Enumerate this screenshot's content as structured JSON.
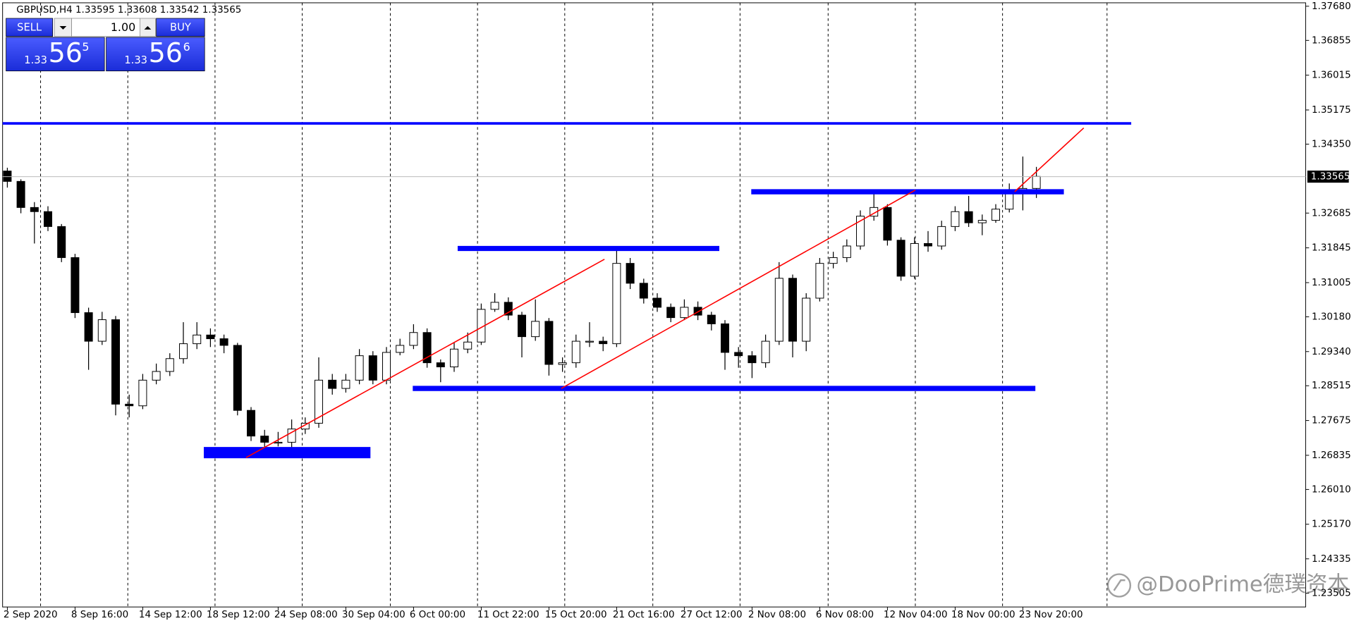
{
  "chart_data": {
    "type": "candlestick",
    "title": "GBPUSD,H4  1.33595 1.33608 1.33542 1.33565",
    "categories": [
      "2 Sep 2020",
      null,
      null,
      null,
      null,
      "8 Sep 16:00",
      null,
      null,
      null,
      null,
      "14 Sep 12:00",
      null,
      null,
      null,
      null,
      "18 Sep 12:00",
      null,
      null,
      null,
      null,
      "24 Sep 08:00",
      null,
      null,
      null,
      null,
      "30 Sep 04:00",
      null,
      null,
      null,
      null,
      "6 Oct 00:00",
      null,
      null,
      null,
      null,
      "11 Oct 22:00",
      null,
      null,
      null,
      null,
      "15 Oct 20:00",
      null,
      null,
      null,
      null,
      "21 Oct 16:00",
      null,
      null,
      null,
      null,
      "27 Oct 12:00",
      null,
      null,
      null,
      null,
      "2 Nov 08:00",
      null,
      null,
      null,
      null,
      "6 Nov 08:00",
      null,
      null,
      null,
      null,
      "12 Nov 04:00",
      null,
      null,
      null,
      null,
      "18 Nov 00:00",
      null,
      null,
      null,
      null,
      "23 Nov 20:00",
      null
    ],
    "open": [
      1.337,
      1.3345,
      1.3282,
      1.3272,
      1.3236,
      1.3161,
      1.3028,
      1.2959,
      1.3011,
      1.2807,
      1.2803,
      1.2865,
      1.2886,
      1.2917,
      1.2953,
      1.2974,
      1.2965,
      1.2949,
      1.2792,
      1.273,
      1.2715,
      1.2715,
      1.2747,
      1.2761,
      1.2865,
      1.2845,
      1.2865,
      1.2924,
      1.2865,
      1.2932,
      1.2949,
      1.298,
      1.2907,
      1.2897,
      1.294,
      1.2957,
      1.3036,
      1.3053,
      1.3022,
      1.297,
      1.3007,
      1.2903,
      1.2907,
      1.2959,
      1.2959,
      1.2953,
      1.3147,
      1.3099,
      1.3063,
      1.3041,
      1.3016,
      1.3041,
      1.3022,
      1.3001,
      1.2932,
      1.2924,
      1.2907,
      1.2959,
      1.3111,
      1.2959,
      1.3063,
      1.3147,
      1.3161,
      1.3189,
      1.3261,
      1.3282,
      1.3203,
      1.3116,
      1.3195,
      1.3189,
      1.3236,
      1.3272,
      1.3245,
      1.3251,
      1.3278,
      1.332,
      1.3328
    ],
    "high": [
      1.3378,
      1.335,
      1.3295,
      1.3285,
      1.3242,
      1.317,
      1.304,
      1.303,
      1.302,
      1.283,
      1.288,
      1.2905,
      1.293,
      1.3005,
      1.3005,
      1.299,
      1.2975,
      1.2955,
      1.28,
      1.2745,
      1.274,
      1.277,
      1.2775,
      1.292,
      1.288,
      1.288,
      1.294,
      1.2935,
      1.2945,
      1.2965,
      1.3,
      1.299,
      1.2915,
      1.2955,
      1.298,
      1.305,
      1.3075,
      1.3065,
      1.303,
      1.306,
      1.3015,
      1.292,
      1.2975,
      1.3005,
      1.297,
      1.3185,
      1.316,
      1.311,
      1.3075,
      1.305,
      1.306,
      1.3055,
      1.303,
      1.301,
      1.2945,
      1.2935,
      1.2975,
      1.315,
      1.312,
      1.3075,
      1.316,
      1.3175,
      1.3205,
      1.3275,
      1.3315,
      1.329,
      1.321,
      1.321,
      1.3225,
      1.325,
      1.3285,
      1.331,
      1.3265,
      1.329,
      1.334,
      1.3405,
      1.338
    ],
    "low": [
      1.333,
      1.3268,
      1.3195,
      1.3225,
      1.315,
      1.3015,
      1.289,
      1.295,
      1.278,
      1.2775,
      1.2795,
      1.2855,
      1.2875,
      1.2905,
      1.294,
      1.2945,
      1.293,
      1.278,
      1.2718,
      1.2703,
      1.2705,
      1.2703,
      1.2735,
      1.275,
      1.283,
      1.2835,
      1.2855,
      1.2855,
      1.2855,
      1.2925,
      1.294,
      1.2895,
      1.286,
      1.2885,
      1.293,
      1.295,
      1.303,
      1.301,
      1.292,
      1.296,
      1.2876,
      1.2885,
      1.2895,
      1.2945,
      1.2935,
      1.2945,
      1.3085,
      1.305,
      1.303,
      1.3005,
      1.301,
      1.301,
      1.2985,
      1.289,
      1.2895,
      1.287,
      1.2895,
      1.295,
      1.292,
      1.2935,
      1.3055,
      1.3135,
      1.315,
      1.318,
      1.325,
      1.319,
      1.3105,
      1.311,
      1.3175,
      1.318,
      1.3225,
      1.3235,
      1.3215,
      1.3245,
      1.327,
      1.3275,
      1.3305
    ],
    "close": [
      1.3345,
      1.3282,
      1.3272,
      1.3236,
      1.3161,
      1.3028,
      1.2959,
      1.3011,
      1.2807,
      1.2803,
      1.2865,
      1.2886,
      1.2917,
      1.2953,
      1.2974,
      1.2965,
      1.2949,
      1.2792,
      1.273,
      1.2715,
      1.2715,
      1.2747,
      1.2761,
      1.2865,
      1.2845,
      1.2865,
      1.2924,
      1.2865,
      1.2932,
      1.2949,
      1.298,
      1.2907,
      1.2897,
      1.294,
      1.2957,
      1.3036,
      1.3053,
      1.3022,
      1.297,
      1.3007,
      1.2903,
      1.2907,
      1.2959,
      1.2959,
      1.2953,
      1.3147,
      1.3099,
      1.3063,
      1.3041,
      1.3016,
      1.3041,
      1.3022,
      1.3001,
      1.2932,
      1.2924,
      1.2907,
      1.2959,
      1.3111,
      1.2959,
      1.3063,
      1.3147,
      1.3161,
      1.3189,
      1.3261,
      1.3282,
      1.3203,
      1.3116,
      1.3195,
      1.3189,
      1.3236,
      1.3272,
      1.3245,
      1.3251,
      1.3278,
      1.332,
      1.3328,
      1.3357
    ],
    "up_color": "#ffffff",
    "down_color": "#000000",
    "ylim": [
      1.23172,
      1.37763
    ],
    "yticks": [
      {
        "value": 1.3768,
        "label": "1.37680"
      },
      1.36855,
      1.36015,
      1.35175,
      {
        "value": 1.3435,
        "label": "1.34350"
      },
      1.32685,
      1.31845,
      1.31005,
      {
        "value": 1.3018,
        "label": "1.30180"
      },
      {
        "value": 1.2934,
        "label": "1.29340"
      },
      1.28515,
      1.27675,
      1.26835,
      {
        "value": 1.2601,
        "label": "1.26010"
      },
      {
        "value": 1.2517,
        "label": "1.25170"
      },
      1.24335,
      1.23505
    ],
    "last_price": 1.33565,
    "levels": [
      1.3485,
      1.332,
      1.3183,
      1.2845,
      1.269
    ],
    "level_color": "#0000ff",
    "trendlines": [
      [
        1.2678,
        1.3157
      ],
      [
        1.2845,
        1.3324
      ],
      [
        1.332,
        1.3474
      ]
    ],
    "trend_color": "#ff0000"
  },
  "trade_panel": {
    "sell": "SELL",
    "lot": "1.00",
    "buy": "BUY",
    "bid": {
      "big": "1.33",
      "pips": "56",
      "point": "5"
    },
    "ask": {
      "big": "1.33",
      "pips": "56",
      "point": "6"
    }
  },
  "watermark": "@DooPrime德璞资本"
}
